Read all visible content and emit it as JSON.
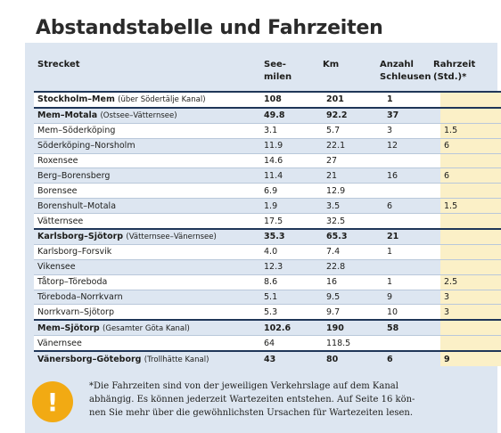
{
  "title": "Abstandstabelle und Fahrzeiten",
  "headers": {
    "route": "Strecket",
    "sea_miles_1": "See-",
    "sea_miles_2": "milen",
    "km": "Km",
    "locks_1": "Anzahl",
    "locks_2": "Schleusen",
    "time_1": "Rahrzeit",
    "time_2": "(Std.)*"
  },
  "rows": [
    {
      "name": "Stockholm–Mem",
      "note": "(über Södertälje Kanal)",
      "sea": "108",
      "km": "201",
      "locks": "1",
      "time": "",
      "bold": true
    },
    {
      "name": "Mem–Motala",
      "note": "(Ostsee–Vätternsee)",
      "sea": "49.8",
      "km": "92.2",
      "locks": "37",
      "time": "",
      "bold": true
    },
    {
      "name": "Mem–Söderköping",
      "note": "",
      "sea": "3.1",
      "km": "5.7",
      "locks": "3",
      "time": "1.5",
      "bold": false
    },
    {
      "name": "Söderköping–Norsholm",
      "note": "",
      "sea": "11.9",
      "km": "22.1",
      "locks": "12",
      "time": "6",
      "bold": false
    },
    {
      "name": "Roxensee",
      "note": "",
      "sea": "14.6",
      "km": "27",
      "locks": "",
      "time": "",
      "bold": false
    },
    {
      "name": "Berg–Borensberg",
      "note": "",
      "sea": "11.4",
      "km": "21",
      "locks": "16",
      "time": "6",
      "bold": false
    },
    {
      "name": "Borensee",
      "note": "",
      "sea": "6.9",
      "km": "12.9",
      "locks": "",
      "time": "",
      "bold": false
    },
    {
      "name": "Borenshult–Motala",
      "note": "",
      "sea": "1.9",
      "km": "3.5",
      "locks": "6",
      "time": "1.5",
      "bold": false
    },
    {
      "name": "Vätternsee",
      "note": "",
      "sea": "17.5",
      "km": "32.5",
      "locks": "",
      "time": "",
      "bold": false
    },
    {
      "name": "Karlsborg–Sjötorp",
      "note": "(Vätternsee–Vänernsee)",
      "sea": "35.3",
      "km": "65.3",
      "locks": "21",
      "time": "",
      "bold": true
    },
    {
      "name": "Karlsborg–Forsvik",
      "note": "",
      "sea": "4.0",
      "km": "7.4",
      "locks": "1",
      "time": "",
      "bold": false
    },
    {
      "name": "Vikensee",
      "note": "",
      "sea": "12.3",
      "km": "22.8",
      "locks": "",
      "time": "",
      "bold": false
    },
    {
      "name": "Tåtorp–Töreboda",
      "note": "",
      "sea": "8.6",
      "km": "16",
      "locks": "1",
      "time": "2.5",
      "bold": false
    },
    {
      "name": "Töreboda–Norrkvarn",
      "note": "",
      "sea": "5.1",
      "km": "9.5",
      "locks": "9",
      "time": "3",
      "bold": false
    },
    {
      "name": "Norrkvarn–Sjötorp",
      "note": "",
      "sea": "5.3",
      "km": "9.7",
      "locks": "10",
      "time": "3",
      "bold": false
    },
    {
      "name": "Mem–Sjötorp",
      "note": "(Gesamter Göta Kanal)",
      "sea": "102.6",
      "km": "190",
      "locks": "58",
      "time": "",
      "bold": true
    },
    {
      "name": "Vänernsee",
      "note": "",
      "sea": "64",
      "km": "118.5",
      "locks": "",
      "time": "",
      "bold": false
    },
    {
      "name": "Vänersborg–Göteborg",
      "note": "(Trollhätte Kanal)",
      "sea": "43",
      "km": "80",
      "locks": "6",
      "time": "9",
      "bold": true
    }
  ],
  "footnote": {
    "icon": "exclamation-icon",
    "text_1": "*Die Fahrzeiten sind von der jeweiligen Verkehrslage auf dem Kanal",
    "text_2": "abhängig. Es können jederzeit Wartezeiten entstehen. Auf Seite 16 kön-",
    "text_3": "nen Sie mehr über die gewöhnlichsten Ursachen für Wartezeiten lesen."
  },
  "colors": {
    "panel": "#dde6f1",
    "time_column": "#fbf0c7",
    "rule": "#1f3658",
    "warning": "#f2aa13"
  }
}
